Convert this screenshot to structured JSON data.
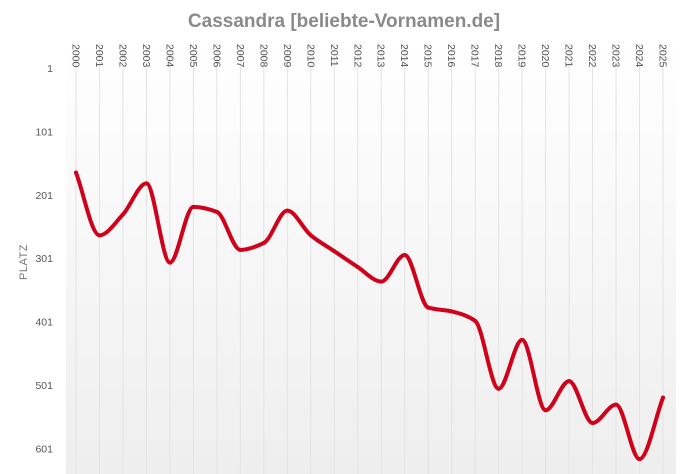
{
  "chart_data": {
    "type": "line",
    "title": "Cassandra [beliebte-Vornamen.de]",
    "xlabel": "",
    "ylabel": "PLATZ",
    "x": [
      "2000",
      "2001",
      "2002",
      "2003",
      "2004",
      "2005",
      "2006",
      "2007",
      "2008",
      "2009",
      "2010",
      "2011",
      "2012",
      "2013",
      "2014",
      "2015",
      "2016",
      "2017",
      "2018",
      "2019",
      "2020",
      "2021",
      "2022",
      "2023",
      "2024",
      "2025"
    ],
    "y_ticks": [
      "1",
      "101",
      "201",
      "301",
      "401",
      "501",
      "601"
    ],
    "ylim": [
      1,
      621
    ],
    "y_reversed": true,
    "grid": {
      "vertical": true,
      "horizontal": false
    },
    "series": [
      {
        "name": "",
        "color": "#d0021b",
        "values": [
          166,
          265,
          232,
          183,
          308,
          220,
          228,
          288,
          277,
          226,
          265,
          290,
          315,
          338,
          296,
          379,
          385,
          400,
          507,
          430,
          541,
          495,
          561,
          532,
          618,
          521
        ]
      }
    ]
  },
  "colors": {
    "line": "#d0021b",
    "grid": "#e3e3e3",
    "title": "#8a8a8a",
    "background_bottom": "#eeeeee"
  }
}
